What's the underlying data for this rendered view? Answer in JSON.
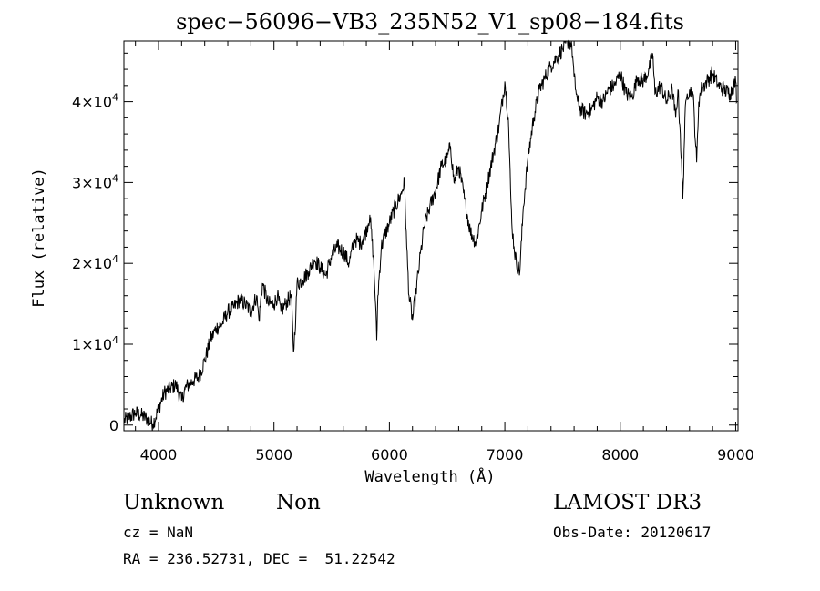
{
  "chart_data": {
    "type": "line",
    "title": "spec−56096−VB3_235N52_V1_sp08−184.fits",
    "xlabel": "Wavelength (Å)",
    "ylabel": "Flux (relative)",
    "xlim": [
      3700,
      9020
    ],
    "ylim": [
      -700,
      47500
    ],
    "x_ticks": [
      4000,
      5000,
      6000,
      7000,
      8000,
      9000
    ],
    "y_ticks": [
      {
        "value": 0,
        "base": "0",
        "exp": ""
      },
      {
        "value": 10000,
        "base": "1×10",
        "exp": "4"
      },
      {
        "value": 20000,
        "base": "2×10",
        "exp": "4"
      },
      {
        "value": 30000,
        "base": "3×10",
        "exp": "4"
      },
      {
        "value": 40000,
        "base": "4×10",
        "exp": "4"
      }
    ],
    "grid": false,
    "series": [
      {
        "x": [
          3700,
          3750,
          3800,
          3850,
          3900,
          3950,
          4000,
          4050,
          4100,
          4150,
          4200,
          4230,
          4260,
          4300,
          4350,
          4400,
          4450,
          4500,
          4550,
          4600,
          4650,
          4700,
          4750,
          4800,
          4850,
          4870,
          4900,
          4950,
          5000,
          5030,
          5060,
          5100,
          5150,
          5170,
          5190,
          5200,
          5250,
          5300,
          5350,
          5400,
          5450,
          5500,
          5550,
          5600,
          5650,
          5700,
          5750,
          5800,
          5830,
          5860,
          5880,
          5890,
          5900,
          5930,
          5960,
          6000,
          6050,
          6100,
          6130,
          6150,
          6170,
          6200,
          6230,
          6260,
          6300,
          6350,
          6400,
          6450,
          6500,
          6530,
          6560,
          6600,
          6650,
          6700,
          6750,
          6800,
          6850,
          6900,
          6950,
          7000,
          7030,
          7050,
          7060,
          7080,
          7100,
          7130,
          7160,
          7200,
          7250,
          7300,
          7350,
          7400,
          7450,
          7500,
          7550,
          7580,
          7600,
          7630,
          7660,
          7700,
          7750,
          7800,
          7850,
          7900,
          7950,
          8000,
          8050,
          8100,
          8150,
          8200,
          8250,
          8280,
          8300,
          8350,
          8400,
          8450,
          8480,
          8500,
          8520,
          8542,
          8560,
          8580,
          8600,
          8630,
          8662,
          8680,
          8700,
          8750,
          8800,
          8850,
          8900,
          8950,
          9000,
          9010
        ],
        "y": [
          500,
          1000,
          1500,
          1200,
          800,
          100,
          2000,
          4000,
          4500,
          5000,
          3000,
          4500,
          5000,
          5500,
          6000,
          8000,
          10500,
          12000,
          12500,
          14000,
          14500,
          15500,
          15000,
          14000,
          16000,
          13000,
          17500,
          15000,
          15000,
          16000,
          14000,
          15000,
          16000,
          9000,
          14000,
          17500,
          18000,
          19000,
          20500,
          19500,
          18500,
          21000,
          22000,
          21500,
          20000,
          23000,
          22500,
          24000,
          26000,
          21000,
          15000,
          10500,
          16000,
          22000,
          23500,
          25000,
          27000,
          28500,
          30000,
          22000,
          16000,
          13000,
          16500,
          20000,
          24500,
          27000,
          29000,
          32000,
          33000,
          34500,
          30000,
          32000,
          28000,
          24000,
          22500,
          26500,
          30000,
          33500,
          37000,
          42500,
          38000,
          29000,
          25000,
          22000,
          20000,
          19000,
          27000,
          33000,
          38000,
          41500,
          43000,
          44500,
          45500,
          46500,
          47500,
          47000,
          43000,
          40000,
          39000,
          38500,
          39000,
          40500,
          40000,
          41500,
          42000,
          43500,
          41000,
          40500,
          43000,
          42500,
          44000,
          46000,
          41000,
          42000,
          40000,
          41500,
          38000,
          41500,
          36000,
          28000,
          38000,
          41000,
          41500,
          41000,
          32500,
          40000,
          41500,
          42500,
          43500,
          42000,
          41500,
          41000,
          42500,
          40000
        ]
      }
    ]
  },
  "info": {
    "object_class": "Unknown",
    "object_subclass": "Non",
    "cz": "cz = NaN",
    "coords": "RA = 236.52731, DEC =  51.22542",
    "survey": "LAMOST DR3",
    "obs_date": "Obs-Date: 20120617"
  }
}
